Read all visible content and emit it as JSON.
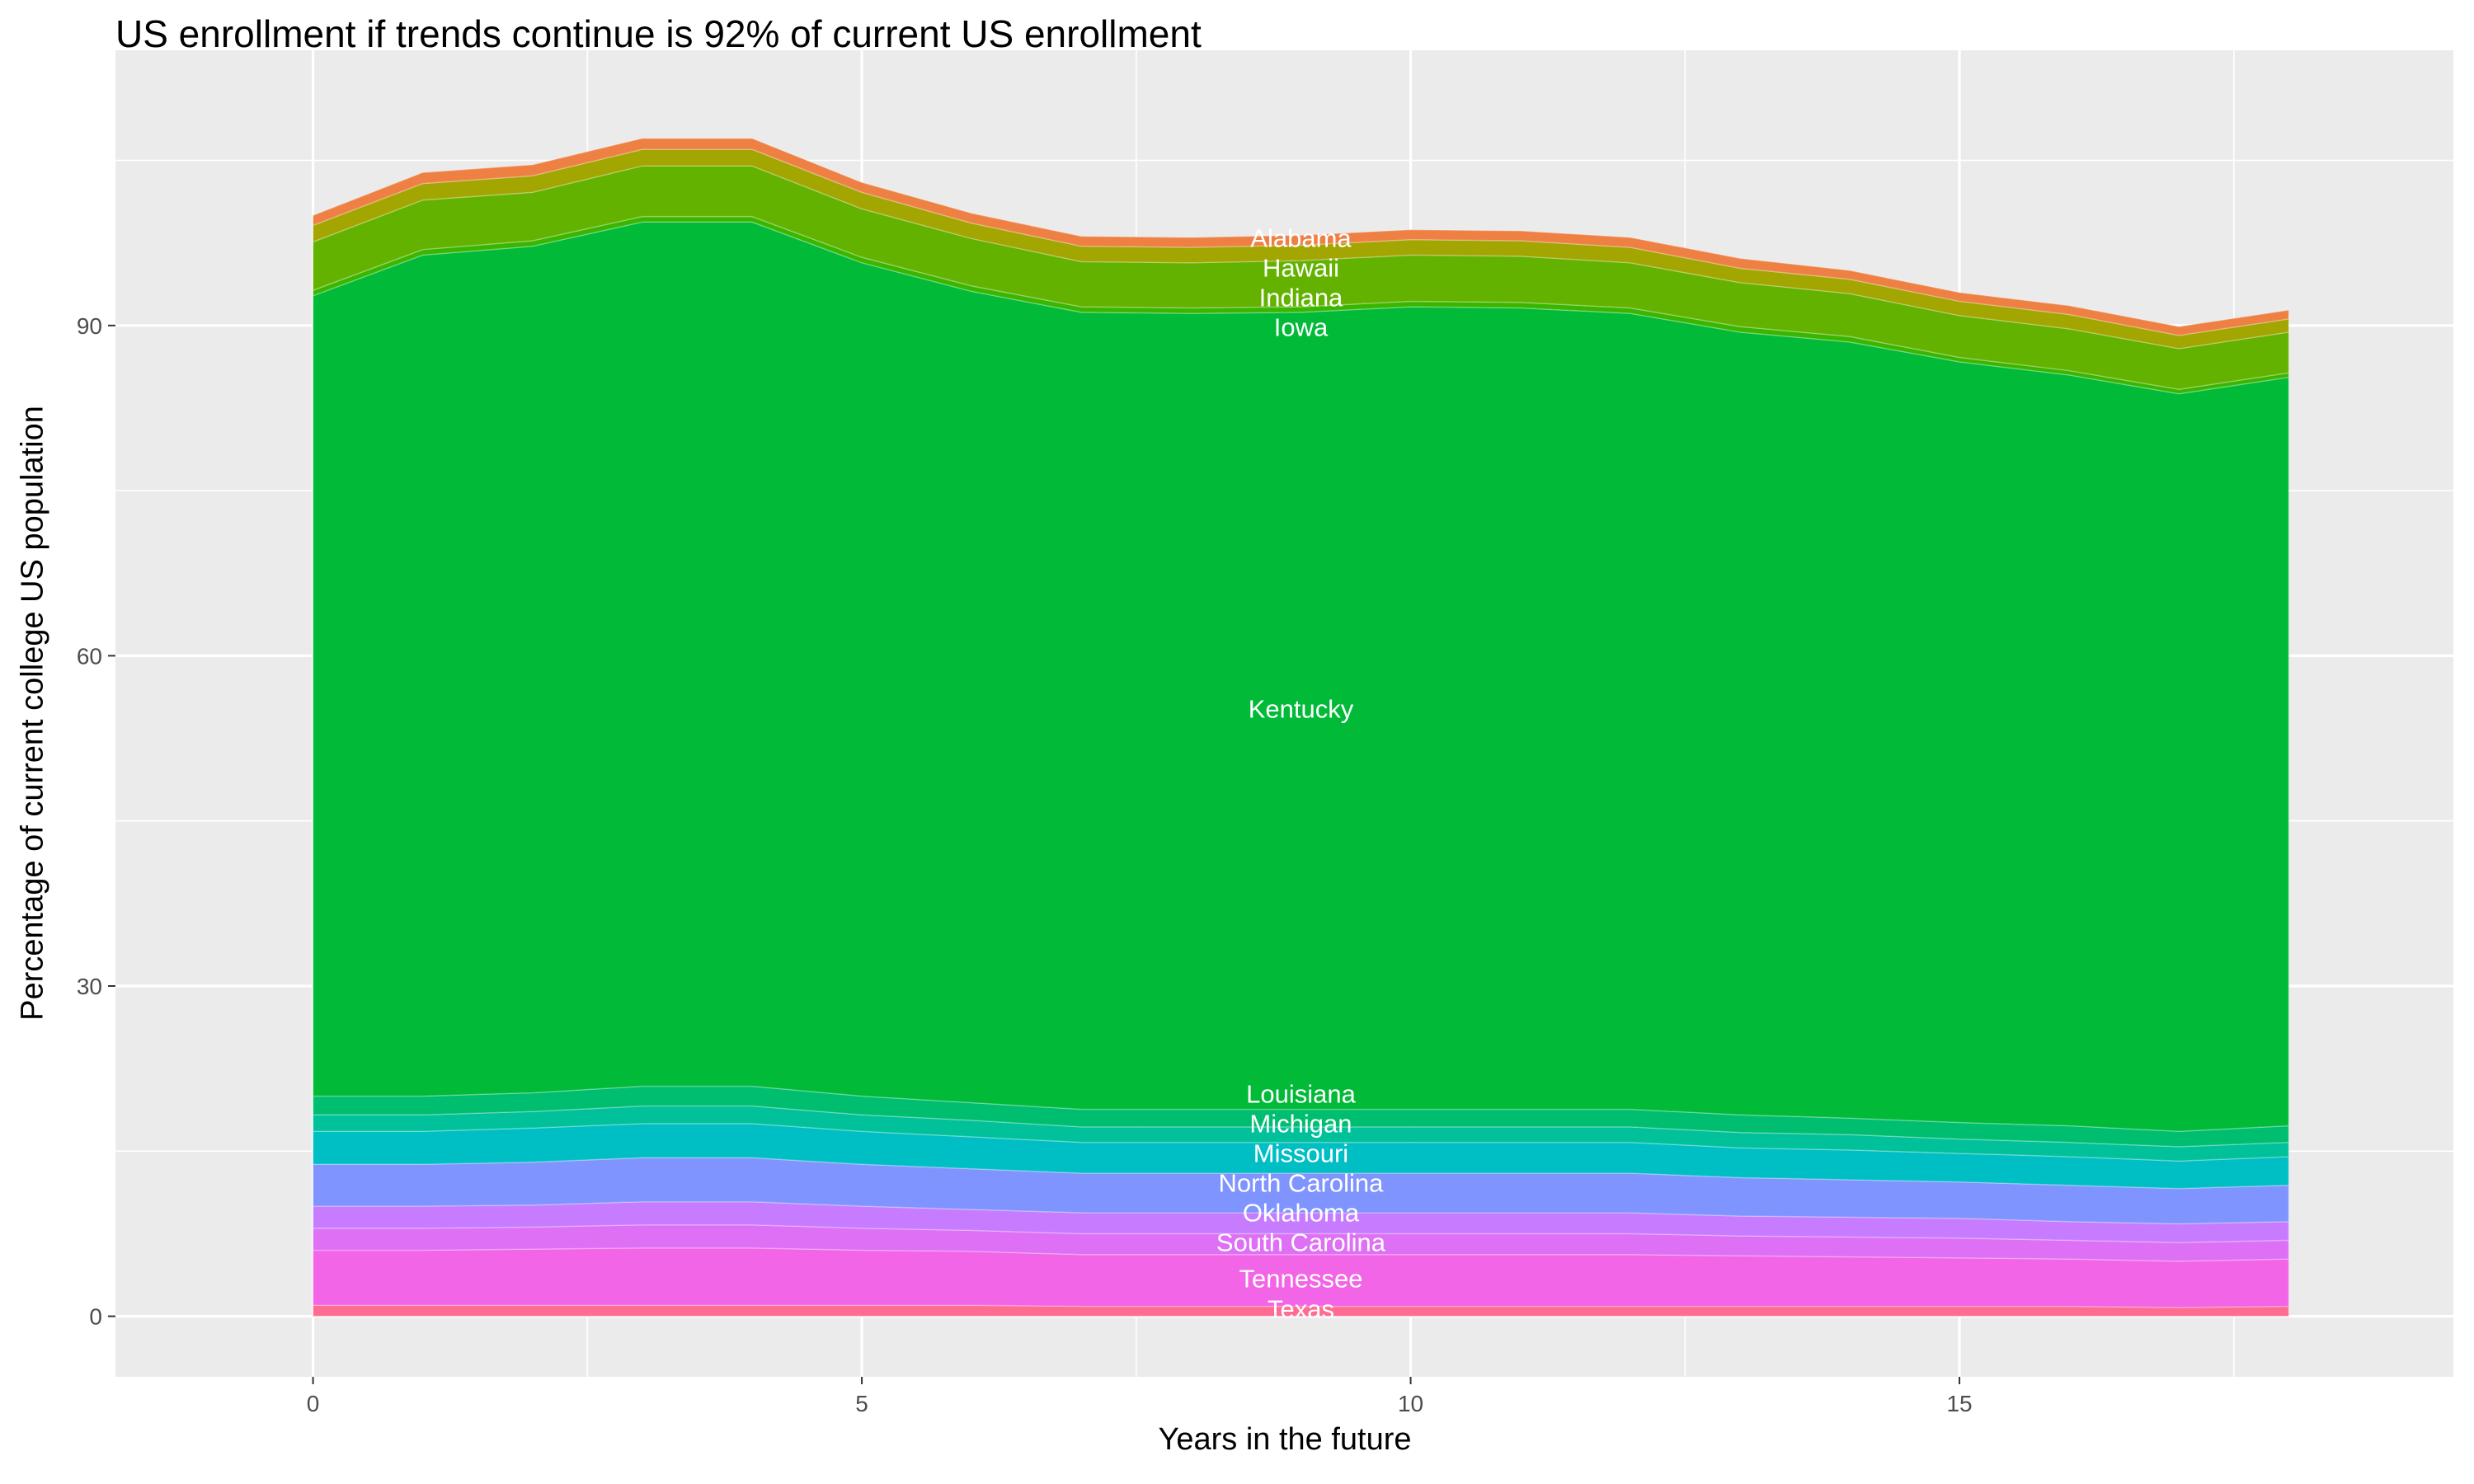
{
  "chart_data": {
    "type": "area",
    "stacked": true,
    "title": "US enrollment if trends continue is 92% of current US enrollment",
    "xlabel": "Years in the future",
    "ylabel": "Percentage of current college US population",
    "xlim": [
      -1.8,
      19.5
    ],
    "ylim": [
      -5.5,
      115
    ],
    "x_ticks": [
      0,
      5,
      10,
      15
    ],
    "y_ticks": [
      0,
      30,
      60,
      90
    ],
    "grid": true,
    "legend": "none (direct labels)",
    "x": [
      0,
      1,
      2,
      3,
      4,
      5,
      6,
      7,
      8,
      9,
      10,
      11,
      12,
      13,
      14,
      15,
      16,
      17,
      18
    ],
    "series": [
      {
        "name": "Texas",
        "color": "#FF6C91",
        "values": [
          1.0,
          1.0,
          1.0,
          1.0,
          1.0,
          1.0,
          1.0,
          0.9,
          0.9,
          0.9,
          0.9,
          0.9,
          0.9,
          0.9,
          0.9,
          0.9,
          0.9,
          0.8,
          0.9
        ]
      },
      {
        "name": "Tennessee",
        "color": "#F265E6",
        "values": [
          5.0,
          5.0,
          5.1,
          5.2,
          5.2,
          5.0,
          4.9,
          4.7,
          4.7,
          4.7,
          4.7,
          4.7,
          4.7,
          4.6,
          4.5,
          4.4,
          4.3,
          4.2,
          4.3
        ]
      },
      {
        "name": "South Carolina",
        "color": "#DE70F5",
        "values": [
          2.0,
          2.0,
          2.0,
          2.1,
          2.1,
          2.0,
          1.9,
          1.9,
          1.9,
          1.9,
          1.9,
          1.9,
          1.9,
          1.8,
          1.8,
          1.8,
          1.7,
          1.7,
          1.7
        ]
      },
      {
        "name": "Oklahoma",
        "color": "#C77CFF",
        "values": [
          2.0,
          2.0,
          2.0,
          2.1,
          2.1,
          2.0,
          1.9,
          1.9,
          1.9,
          1.9,
          1.9,
          1.9,
          1.9,
          1.8,
          1.8,
          1.8,
          1.7,
          1.7,
          1.7
        ]
      },
      {
        "name": "North Carolina",
        "color": "#8094FF",
        "values": [
          3.8,
          3.8,
          3.9,
          4.0,
          4.0,
          3.8,
          3.7,
          3.6,
          3.6,
          3.6,
          3.6,
          3.6,
          3.6,
          3.5,
          3.4,
          3.3,
          3.3,
          3.2,
          3.3
        ]
      },
      {
        "name": "Missouri",
        "color": "#00BFC4",
        "values": [
          3.0,
          3.0,
          3.1,
          3.1,
          3.1,
          3.0,
          2.9,
          2.8,
          2.8,
          2.8,
          2.8,
          2.8,
          2.8,
          2.7,
          2.7,
          2.6,
          2.6,
          2.5,
          2.6
        ]
      },
      {
        "name": "Michigan",
        "color": "#00C19A",
        "values": [
          1.5,
          1.5,
          1.5,
          1.6,
          1.6,
          1.5,
          1.5,
          1.4,
          1.4,
          1.4,
          1.4,
          1.4,
          1.4,
          1.4,
          1.4,
          1.3,
          1.3,
          1.3,
          1.3
        ]
      },
      {
        "name": "Louisiana",
        "color": "#00BE70",
        "values": [
          1.7,
          1.7,
          1.7,
          1.8,
          1.8,
          1.7,
          1.6,
          1.6,
          1.6,
          1.6,
          1.6,
          1.6,
          1.6,
          1.6,
          1.5,
          1.5,
          1.5,
          1.4,
          1.5
        ]
      },
      {
        "name": "Kentucky",
        "color": "#00BA38",
        "values": [
          72.7,
          76.4,
          76.9,
          78.5,
          78.5,
          75.7,
          73.7,
          72.4,
          72.3,
          72.4,
          72.9,
          72.8,
          72.3,
          71.1,
          70.5,
          69.1,
          68.2,
          67.0,
          68.0
        ]
      },
      {
        "name": "Iowa",
        "color": "#39B600",
        "values": [
          0.5,
          0.5,
          0.5,
          0.5,
          0.5,
          0.5,
          0.5,
          0.5,
          0.5,
          0.5,
          0.5,
          0.5,
          0.5,
          0.5,
          0.5,
          0.4,
          0.4,
          0.4,
          0.4
        ]
      },
      {
        "name": "Indiana",
        "color": "#64B200",
        "values": [
          4.4,
          4.5,
          4.4,
          4.6,
          4.6,
          4.4,
          4.3,
          4.1,
          4.1,
          4.2,
          4.2,
          4.2,
          4.1,
          4.0,
          3.9,
          3.8,
          3.8,
          3.7,
          3.7
        ]
      },
      {
        "name": "Hawaii",
        "color": "#A3A500",
        "values": [
          1.5,
          1.5,
          1.5,
          1.5,
          1.5,
          1.5,
          1.4,
          1.4,
          1.4,
          1.4,
          1.4,
          1.4,
          1.4,
          1.3,
          1.3,
          1.3,
          1.3,
          1.2,
          1.2
        ]
      },
      {
        "name": "Alabama",
        "color": "#EE8044",
        "values": [
          0.9,
          1.0,
          1.0,
          1.0,
          1.0,
          0.9,
          0.9,
          0.9,
          0.9,
          0.9,
          0.9,
          0.9,
          0.9,
          0.9,
          0.8,
          0.8,
          0.8,
          0.8,
          0.8
        ]
      }
    ]
  }
}
